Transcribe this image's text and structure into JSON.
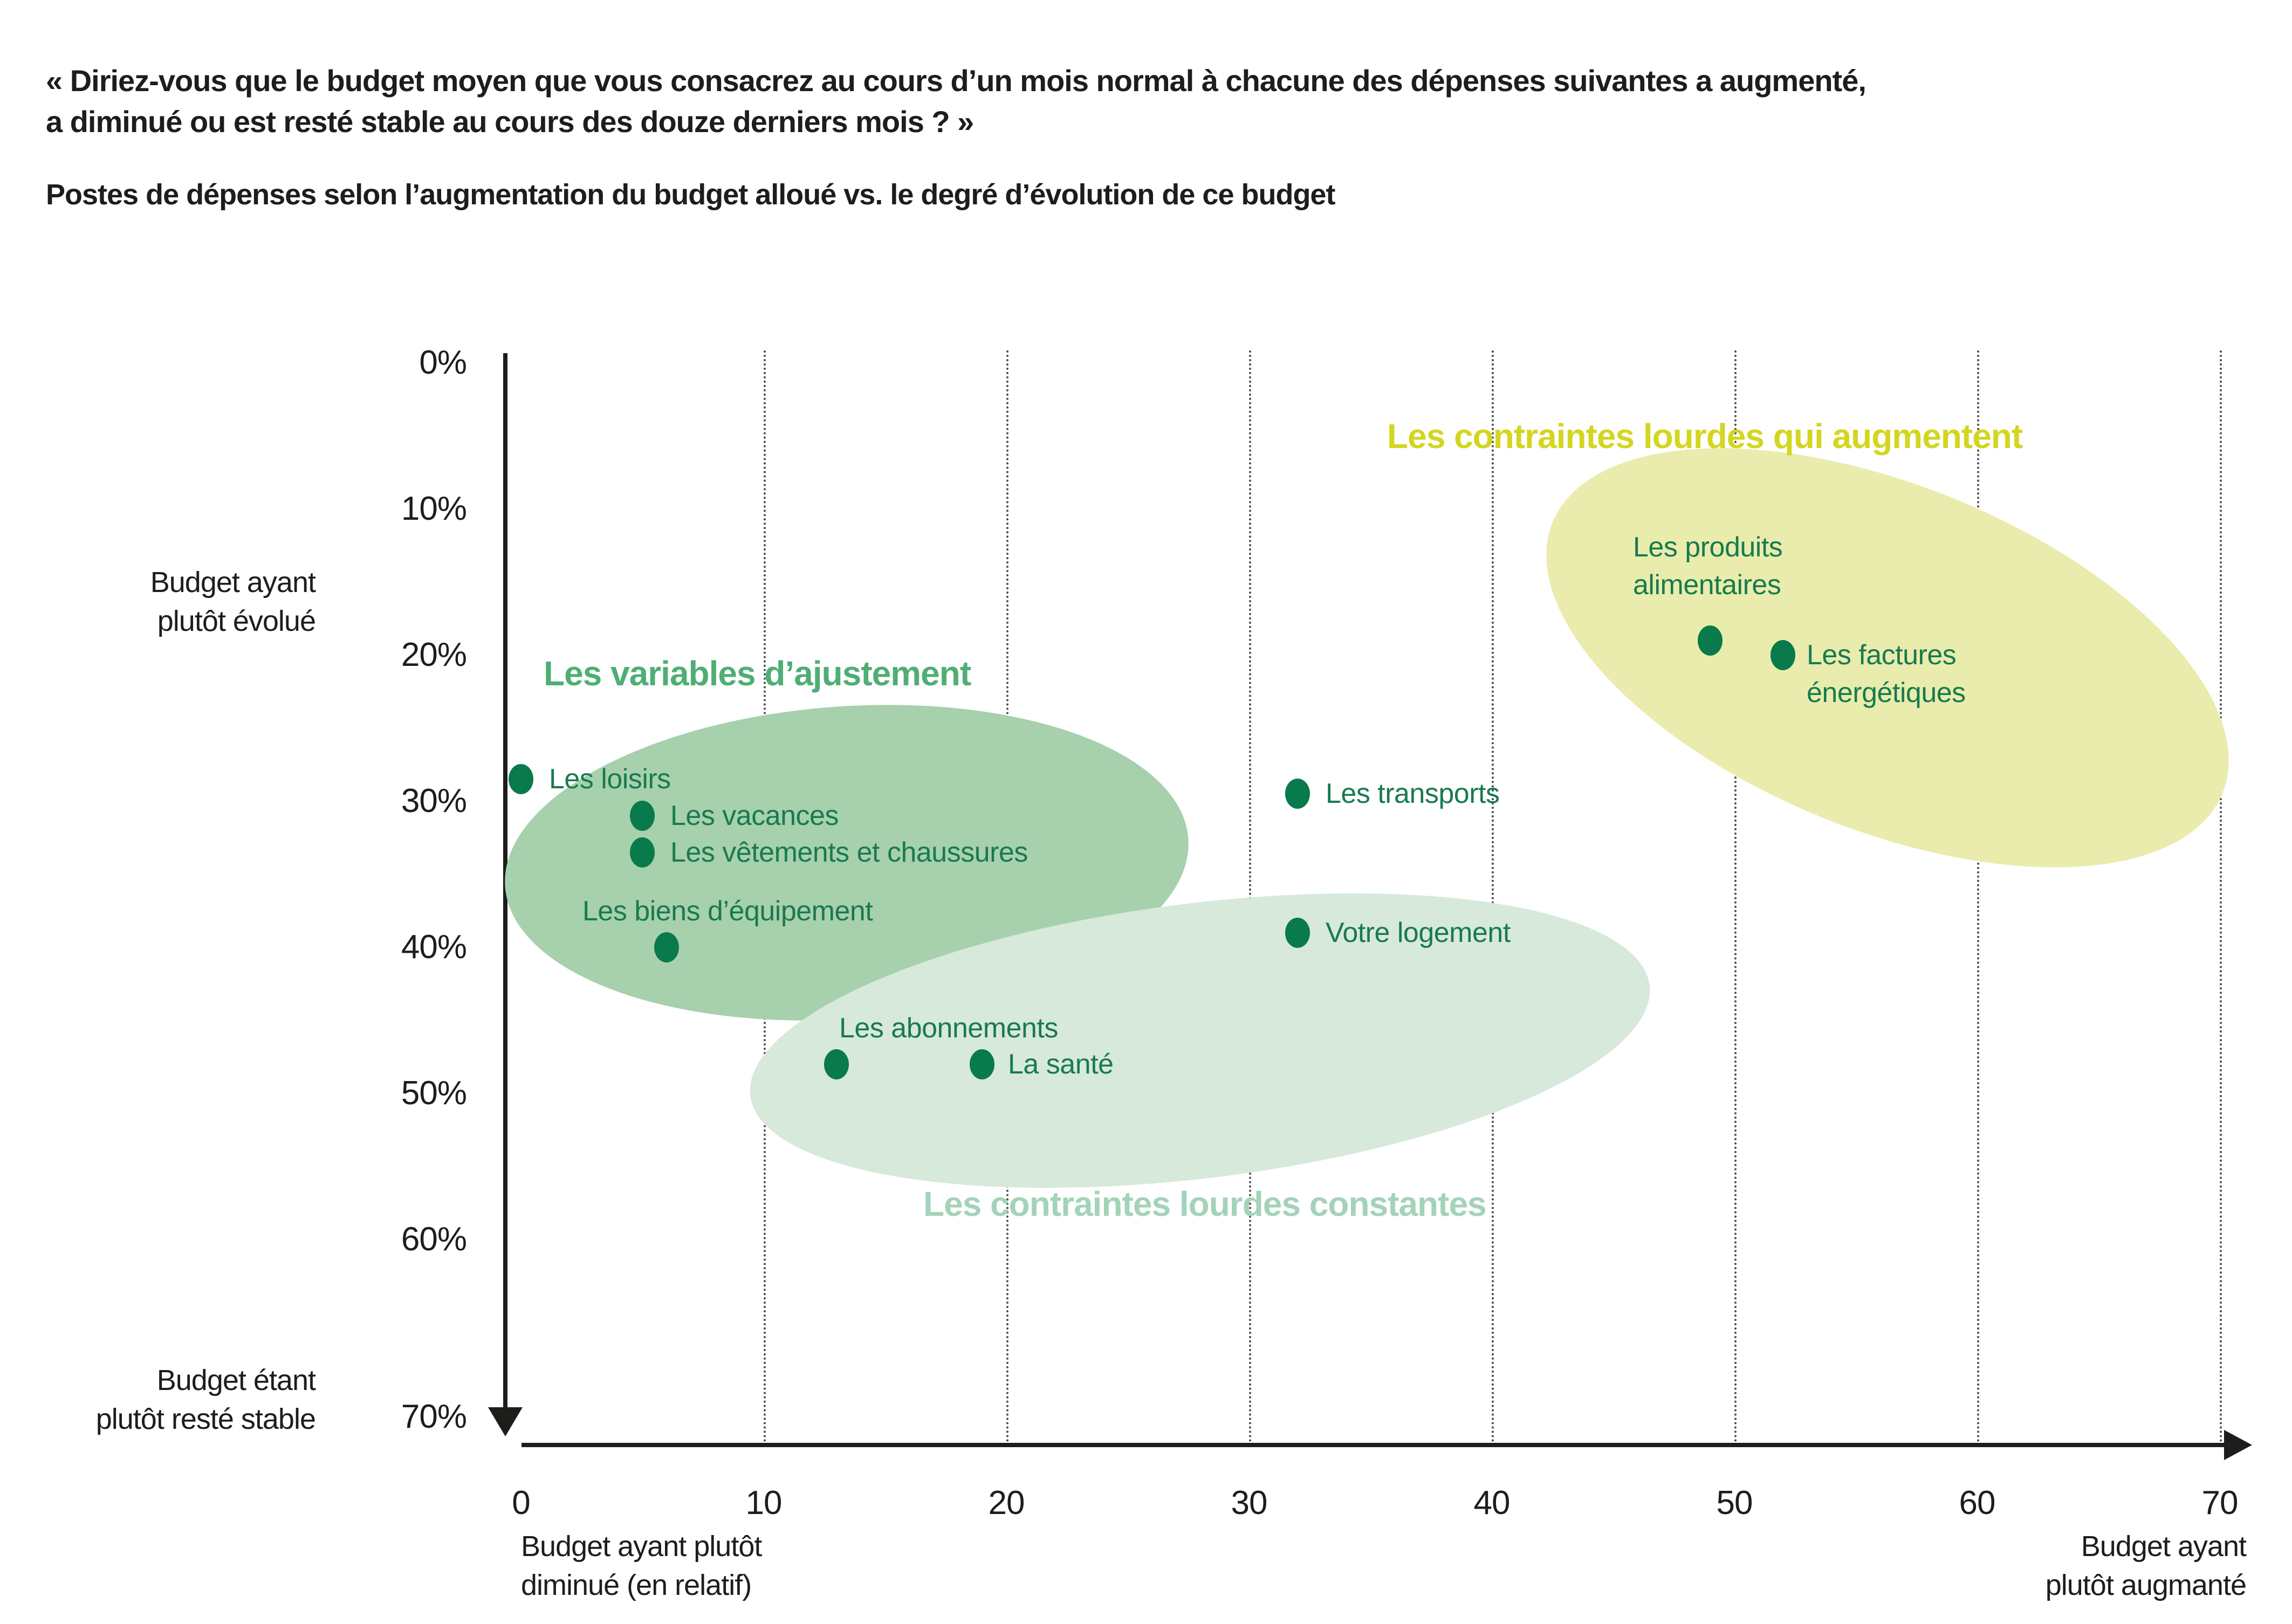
{
  "header": {
    "question_line1": "« Diriez-vous que le budget moyen que vous consacrez au cours d’un mois normal à chacune des dépenses suivantes a augmenté,",
    "question_line2": "a diminué ou est resté stable au cours des douze derniers mois ? »",
    "subtitle": "Postes de dépenses selon l’augmentation du budget alloué vs. le degré d’évolution de ce budget"
  },
  "colors": {
    "text": "#1d1d1b",
    "axis": "#1d1d1b",
    "gridline": "#4b4b49",
    "dot": "#097a4b",
    "point_label": "#187a50"
  },
  "axes": {
    "y_ticks": [
      "0%",
      "10%",
      "20%",
      "30%",
      "40%",
      "50%",
      "60%",
      "70%"
    ],
    "x_ticks": [
      "0",
      "10",
      "20",
      "30",
      "40",
      "50",
      "60",
      "70"
    ],
    "y_top_label": "Budget ayant\nplutôt évolué",
    "y_bottom_label": "Budget étant\nplutôt resté stable",
    "x_left_label": "Budget ayant plutôt\ndiminué (en relatif)",
    "x_right_label": "Budget ayant\nplutôt augmanté"
  },
  "chart_data": {
    "type": "scatter",
    "title": "Postes de dépenses selon l’augmentation du budget alloué vs. le degré d’évolution de ce budget",
    "xlabel": "Budget ayant plutôt diminué (en relatif) → Budget ayant plutôt augmanté",
    "ylabel": "Budget ayant plutôt évolué (0%) → Budget étant plutôt resté stable (70%)",
    "xlim": [
      0,
      70
    ],
    "ylim": [
      0,
      70
    ],
    "y_inverted": true,
    "y_unit": "%",
    "grid": "vertical-dotted",
    "series": [
      {
        "id": "adjustment",
        "name": "Les variables d’ajustement",
        "title_color": "#4fae74",
        "blob_color": "#a7d0ac",
        "points": [
          {
            "label": "Les loisirs",
            "x": 0,
            "y": 28.5,
            "dx": 52,
            "dy": -35
          },
          {
            "label": "Les vacances",
            "x": 5,
            "y": 31,
            "dx": 52,
            "dy": -35
          },
          {
            "label": "Les vêtements et chaussures",
            "x": 5,
            "y": 33.5,
            "dx": 52,
            "dy": -35
          },
          {
            "label": "Les biens d’équipement",
            "x": 6,
            "y": 40,
            "dx": -156,
            "dy": -102
          }
        ]
      },
      {
        "id": "constant",
        "name": "Les contraintes lourdes constantes",
        "title_color": "#a3d3b8",
        "blob_color": "#d7e9da",
        "points": [
          {
            "label": "Les transports",
            "x": 32,
            "y": 29.5,
            "dx": 52,
            "dy": -35
          },
          {
            "label": "Votre logement",
            "x": 32,
            "y": 39,
            "dx": 52,
            "dy": -35
          },
          {
            "label": "Les abonnements",
            "x": 13,
            "y": 48,
            "dx": 5,
            "dy": -102
          },
          {
            "label": "La santé",
            "x": 19,
            "y": 48,
            "dx": 48,
            "dy": -35
          }
        ]
      },
      {
        "id": "increasing",
        "name": "Les contraintes lourdes qui augmentent",
        "title_color": "#d3d61f",
        "blob_color": "#e9ecac",
        "points": [
          {
            "label": "Les produits\nalimentaires",
            "x": 49,
            "y": 19,
            "dx": -143,
            "dy": -208
          },
          {
            "label": "Les factures\nénergétiques",
            "x": 52,
            "y": 20,
            "dx": 44,
            "dy": -35
          }
        ]
      }
    ]
  }
}
